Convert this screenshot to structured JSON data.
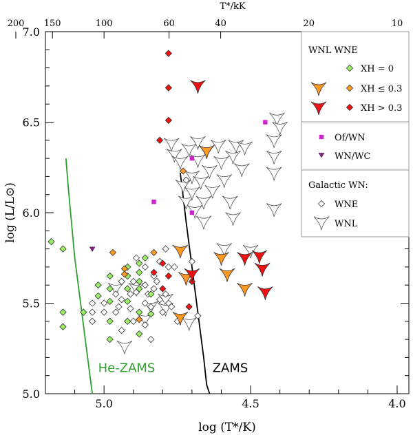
{
  "chart_data": {
    "type": "scatter",
    "xlabel": "log (T*/K)",
    "ylabel": "log (L/L⊙)",
    "top_xlabel": "T*/kK",
    "xlim": [
      5.2,
      3.96
    ],
    "ylim": [
      5.0,
      7.0
    ],
    "x_ticks": [
      5.0,
      4.5,
      4.0
    ],
    "x_tick_labels": [
      "5.0",
      "4.5",
      "4.0"
    ],
    "y_ticks": [
      5.0,
      5.5,
      6.0,
      6.5,
      7.0
    ],
    "y_tick_labels": [
      "5.0",
      "5.5",
      "6.0",
      "6.5",
      "7.0"
    ],
    "top_ticks": [
      200,
      150,
      100,
      60,
      40,
      20,
      10
    ],
    "top_tick_labels": [
      "200",
      "150",
      "100",
      "60",
      "40",
      "20",
      "10"
    ],
    "grid": false,
    "legend_position": "top-right",
    "legend": {
      "header": "WNL WNE",
      "xh0": "XH = 0",
      "xh03le": "XH ≤ 0.3",
      "xh03gt": "XH > 0.3",
      "ofwn": "Of/WN",
      "wnwc": "WN/WC",
      "galactic_title": "Galactic WN:",
      "wne": "WNE",
      "wnl": "WNL"
    },
    "colors": {
      "xh0": "#99ee66",
      "xh03le": "#ff9922",
      "xh03gt": "#ee1111",
      "ofwn": "#cc22cc",
      "wnwc": "#882288",
      "galactic": "#ffffff",
      "he_zams": "#2e9e2e",
      "zams": "#000000"
    },
    "annotations": {
      "he_zams": "He-ZAMS",
      "zams": "ZAMS"
    },
    "curves": {
      "he_zams": [
        [
          5.13,
          6.3
        ],
        [
          5.12,
          6.1
        ],
        [
          5.1,
          5.75
        ],
        [
          5.08,
          5.5
        ],
        [
          5.06,
          5.25
        ],
        [
          5.04,
          5.0
        ]
      ],
      "zams": [
        [
          4.74,
          6.22
        ],
        [
          4.72,
          5.95
        ],
        [
          4.7,
          5.7
        ],
        [
          4.68,
          5.45
        ],
        [
          4.66,
          5.2
        ],
        [
          4.65,
          5.05
        ],
        [
          4.64,
          5.0
        ]
      ]
    },
    "series": [
      {
        "group": "wne_xh0",
        "points": [
          [
            5.18,
            5.84
          ],
          [
            5.14,
            5.8
          ],
          [
            5.14,
            5.45
          ],
          [
            5.14,
            5.37
          ],
          [
            5.07,
            5.45
          ],
          [
            5.02,
            5.6
          ],
          [
            5.02,
            5.54
          ],
          [
            4.98,
            5.65
          ],
          [
            4.98,
            5.58
          ],
          [
            4.98,
            5.51
          ],
          [
            4.98,
            5.4
          ],
          [
            4.98,
            5.3
          ],
          [
            4.92,
            5.7
          ],
          [
            4.92,
            5.65
          ],
          [
            4.92,
            5.58
          ],
          [
            4.92,
            5.51
          ],
          [
            4.92,
            5.4
          ],
          [
            4.88,
            5.72
          ],
          [
            4.88,
            5.67
          ],
          [
            4.88,
            5.62
          ],
          [
            4.88,
            5.58
          ],
          [
            4.88,
            5.45
          ],
          [
            4.88,
            5.33
          ],
          [
            4.86,
            5.75
          ],
          [
            4.84,
            5.55
          ],
          [
            4.84,
            5.44
          ]
        ]
      },
      {
        "group": "wne_xh03le",
        "points": [
          [
            4.97,
            5.78
          ],
          [
            4.93,
            5.69
          ],
          [
            4.93,
            5.66
          ],
          [
            4.88,
            5.41
          ],
          [
            4.83,
            5.78
          ],
          [
            4.73,
            6.23
          ]
        ]
      },
      {
        "group": "wne_xh03gt",
        "points": [
          [
            4.78,
            6.88
          ],
          [
            4.78,
            6.69
          ],
          [
            4.78,
            6.51
          ],
          [
            4.81,
            6.4
          ],
          [
            4.8,
            5.72
          ],
          [
            4.78,
            5.65
          ],
          [
            4.8,
            5.58
          ],
          [
            4.83,
            5.67
          ],
          [
            4.7,
            5.62
          ],
          [
            4.71,
            5.48
          ]
        ]
      },
      {
        "group": "wnl_xh03le",
        "points": [
          [
            4.74,
            5.79
          ],
          [
            4.74,
            5.42
          ],
          [
            4.72,
            5.64
          ],
          [
            4.65,
            6.34
          ],
          [
            4.6,
            5.75
          ],
          [
            4.58,
            5.66
          ],
          [
            4.52,
            5.58
          ]
        ]
      },
      {
        "group": "wnl_xh03gt",
        "points": [
          [
            4.68,
            6.7
          ],
          [
            4.7,
            5.66
          ],
          [
            4.52,
            5.75
          ],
          [
            4.47,
            5.76
          ],
          [
            4.46,
            5.69
          ],
          [
            4.45,
            5.56
          ]
        ]
      },
      {
        "group": "ofwn",
        "points": [
          [
            4.83,
            6.06
          ],
          [
            4.7,
            6.3
          ],
          [
            4.7,
            6.0
          ],
          [
            4.45,
            6.5
          ]
        ]
      },
      {
        "group": "wnwc",
        "points": [
          [
            5.04,
            5.8
          ]
        ]
      },
      {
        "group": "galactic_wne",
        "points": [
          [
            5.04,
            5.5
          ],
          [
            5.04,
            5.45
          ],
          [
            5.04,
            5.4
          ],
          [
            5.0,
            5.5
          ],
          [
            5.0,
            5.45
          ],
          [
            4.96,
            5.55
          ],
          [
            4.96,
            5.45
          ],
          [
            4.95,
            5.48
          ],
          [
            4.94,
            5.62
          ],
          [
            4.94,
            5.52
          ],
          [
            4.94,
            5.35
          ],
          [
            4.91,
            5.55
          ],
          [
            4.91,
            5.47
          ],
          [
            4.9,
            5.62
          ],
          [
            4.9,
            5.4
          ],
          [
            4.89,
            5.75
          ],
          [
            4.89,
            5.56
          ],
          [
            4.86,
            5.7
          ],
          [
            4.86,
            5.6
          ],
          [
            4.86,
            5.5
          ],
          [
            4.86,
            5.38
          ],
          [
            4.85,
            5.55
          ],
          [
            4.84,
            5.48
          ],
          [
            4.84,
            5.3
          ],
          [
            4.83,
            5.65
          ],
          [
            4.83,
            5.58
          ],
          [
            4.82,
            5.62
          ],
          [
            4.81,
            5.73
          ],
          [
            4.81,
            5.52
          ],
          [
            4.8,
            5.45
          ],
          [
            4.79,
            5.8
          ],
          [
            4.79,
            5.55
          ],
          [
            4.78,
            5.7
          ],
          [
            4.78,
            5.5
          ],
          [
            4.77,
            5.48
          ],
          [
            4.76,
            5.7
          ],
          [
            4.75,
            5.4
          ],
          [
            4.72,
            6.18
          ],
          [
            4.7,
            5.73
          ],
          [
            4.68,
            5.43
          ]
        ]
      },
      {
        "group": "galactic_wnl",
        "points": [
          [
            4.96,
            5.58
          ],
          [
            4.93,
            5.26
          ],
          [
            4.89,
            5.58
          ],
          [
            4.86,
            5.41
          ],
          [
            4.84,
            5.48
          ],
          [
            4.79,
            5.52
          ],
          [
            4.79,
            5.47
          ],
          [
            4.77,
            6.38
          ],
          [
            4.76,
            6.32
          ],
          [
            4.74,
            6.28
          ],
          [
            4.73,
            6.15
          ],
          [
            4.72,
            6.06
          ],
          [
            4.71,
            6.35
          ],
          [
            4.71,
            5.39
          ],
          [
            4.7,
            6.2
          ],
          [
            4.7,
            6.11
          ],
          [
            4.69,
            6.01
          ],
          [
            4.68,
            6.39
          ],
          [
            4.68,
            6.29
          ],
          [
            4.67,
            6.17
          ],
          [
            4.66,
            6.06
          ],
          [
            4.66,
            5.95
          ],
          [
            4.65,
            6.34
          ],
          [
            4.64,
            6.23
          ],
          [
            4.63,
            6.12
          ],
          [
            4.61,
            6.37
          ],
          [
            4.6,
            6.28
          ],
          [
            4.59,
            6.18
          ],
          [
            4.59,
            5.8
          ],
          [
            4.57,
            6.06
          ],
          [
            4.56,
            6.31
          ],
          [
            4.56,
            5.97
          ],
          [
            4.55,
            6.37
          ],
          [
            4.53,
            6.24
          ],
          [
            4.52,
            6.36
          ],
          [
            4.5,
            5.79
          ],
          [
            4.42,
            6.4
          ],
          [
            4.42,
            6.31
          ],
          [
            4.42,
            6.22
          ],
          [
            4.42,
            6.02
          ],
          [
            4.41,
            6.52
          ],
          [
            4.4,
            6.47
          ]
        ]
      }
    ]
  }
}
